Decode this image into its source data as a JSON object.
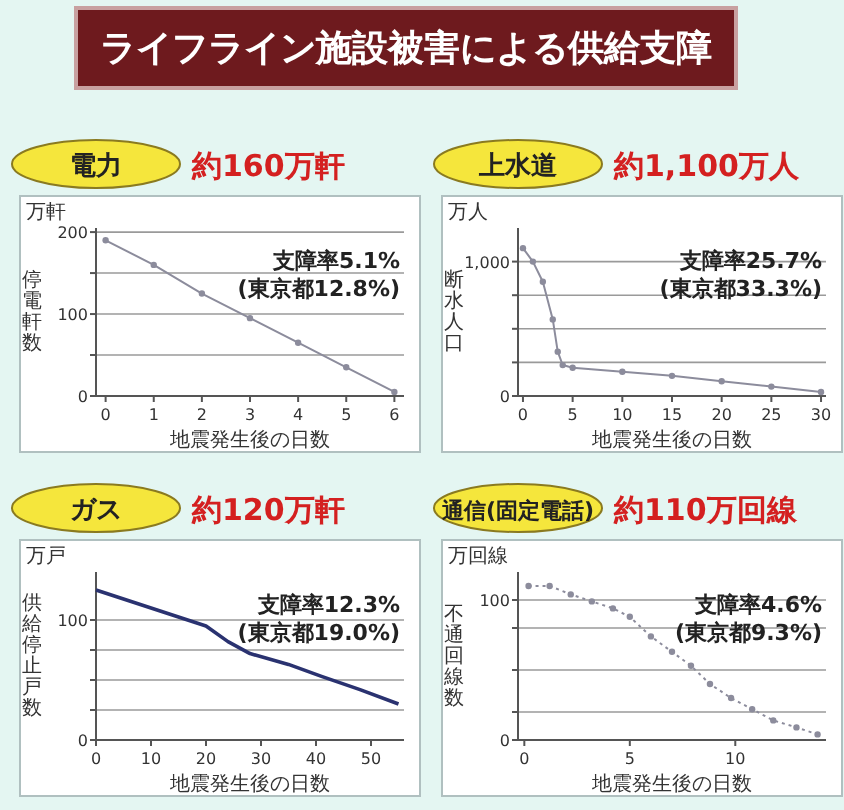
{
  "chart_data": [
    {
      "type": "other",
      "title": "ライフライン施設被害による供給支障"
    },
    {
      "type": "line",
      "title": "電力",
      "subtitle": "約160万軒",
      "ylabel": "停電軒数",
      "xlabel": "地震発生後の日数",
      "annotations": [
        "万軒",
        "支障率5.1%",
        "(東京都12.8%)"
      ],
      "x": [
        0,
        1,
        2,
        3,
        4,
        5,
        6
      ],
      "series": [
        {
          "color": "#8c8c9c",
          "values": [
            190,
            160,
            125,
            95,
            65,
            35,
            5
          ]
        }
      ],
      "xlim": [
        -0.2,
        6.2
      ],
      "xticks": [
        0,
        1,
        2,
        3,
        4,
        5,
        6
      ],
      "ylim": [
        0,
        205
      ],
      "yticks": [
        0,
        {
          "value": 50,
          "label": null
        },
        100,
        {
          "value": 150,
          "label": null
        },
        200
      ],
      "grid": "y",
      "marker": "circle"
    },
    {
      "type": "line",
      "title": "上水道",
      "subtitle": "約1,100万人",
      "ylabel": "断水人口",
      "xlabel": "地震発生後の日数",
      "annotations": [
        "万人",
        "支障率25.7%",
        "(東京都33.3%)"
      ],
      "x": [
        0,
        1,
        2,
        3,
        3.5,
        4,
        5,
        10,
        15,
        20,
        25,
        30
      ],
      "series": [
        {
          "color": "#8c8c9c",
          "values": [
            1100,
            1000,
            850,
            570,
            330,
            230,
            210,
            180,
            150,
            110,
            70,
            30
          ]
        }
      ],
      "xlim": [
        -0.5,
        30.5
      ],
      "xticks": [
        0,
        5,
        10,
        15,
        20,
        25,
        30
      ],
      "ylim": [
        0,
        1250
      ],
      "yticks": [
        0,
        {
          "value": 250,
          "label": null
        },
        {
          "value": 500,
          "label": null
        },
        {
          "value": 750,
          "label": null
        },
        {
          "value": 1000,
          "label": "1,000"
        }
      ],
      "grid": "y",
      "marker": "circle"
    },
    {
      "type": "line",
      "title": "ガス",
      "subtitle": "約120万軒",
      "ylabel": "供給停止戸数",
      "xlabel": "地震発生後の日数",
      "annotations": [
        "万戸",
        "支障率12.3%",
        "(東京都19.0%)"
      ],
      "x": [
        0,
        10,
        20,
        24,
        28,
        35,
        41,
        48,
        55
      ],
      "series": [
        {
          "color": "#2a3270",
          "values": [
            125,
            110,
            95,
            82,
            72,
            63,
            53,
            42,
            30
          ]
        }
      ],
      "xlim": [
        0,
        56
      ],
      "xticks": [
        0,
        10,
        20,
        30,
        40,
        50
      ],
      "ylim": [
        0,
        140
      ],
      "yticks": [
        0,
        {
          "value": 25,
          "label": null
        },
        {
          "value": 50,
          "label": null
        },
        {
          "value": 75,
          "label": null
        },
        100
      ],
      "grid": "y",
      "marker": "none"
    },
    {
      "type": "line",
      "title": "通信(固定電話)",
      "subtitle": "約110万回線",
      "ylabel": "不通回線数",
      "xlabel": "地震発生後の日数",
      "annotations": [
        "万回線",
        "支障率4.6%",
        "(東京都9.3%)"
      ],
      "x": [
        0.2,
        1.2,
        2.2,
        3.2,
        4.2,
        5,
        6,
        7,
        7.9,
        8.8,
        9.8,
        10.8,
        11.8,
        12.9,
        13.9
      ],
      "series": [
        {
          "color": "#8c8c9c",
          "values": [
            110,
            110,
            104,
            99,
            94,
            88,
            74,
            63,
            53,
            40,
            30,
            22,
            14,
            9,
            4
          ]
        }
      ],
      "xlim": [
        -0.3,
        14.3
      ],
      "xticks": [
        0,
        5,
        10
      ],
      "ylim": [
        0,
        120
      ],
      "yticks": [
        0,
        {
          "value": 20,
          "label": null
        },
        {
          "value": 50,
          "label": null
        },
        {
          "value": 80,
          "label": null
        },
        100
      ],
      "grid": "y",
      "marker": "circle",
      "line_style": "dotted"
    }
  ]
}
